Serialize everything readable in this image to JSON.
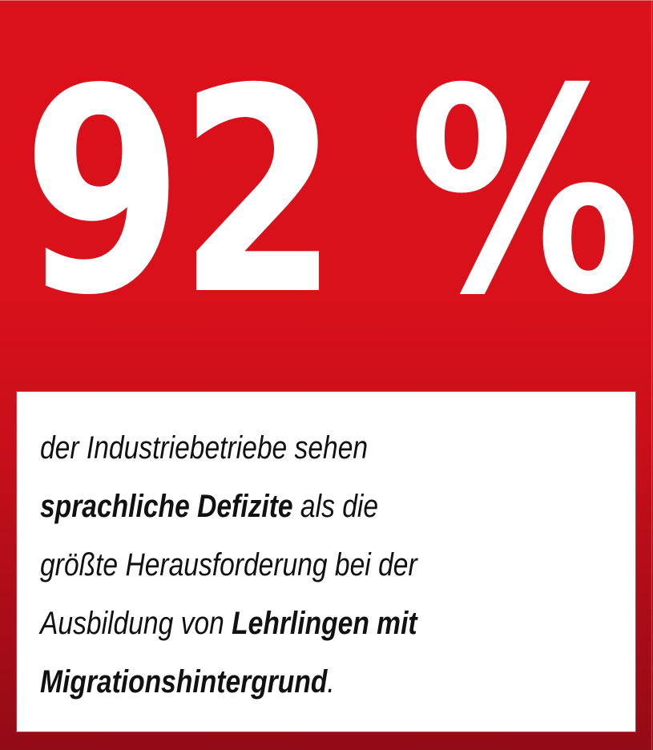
{
  "stat": {
    "value": "92",
    "unit": "%",
    "display": "92 %"
  },
  "description": {
    "lines": [
      [
        {
          "text": "der Industriebetriebe sehen",
          "bold": false
        }
      ],
      [
        {
          "text": "sprachliche Defizite",
          "bold": true
        },
        {
          "text": " als die",
          "bold": false
        }
      ],
      [
        {
          "text": "größte Herausforderung bei der",
          "bold": false
        }
      ],
      [
        {
          "text": "Ausbildung von ",
          "bold": false
        },
        {
          "text": "Lehrlingen mit",
          "bold": true
        }
      ],
      [
        {
          "text": "Migrationshintergrund",
          "bold": true
        },
        {
          "text": ".",
          "bold": false
        }
      ]
    ],
    "full_text": "der Industriebetriebe sehen sprachliche Defizite als die größte Herausforderung bei der Ausbildung von Lehrlingen mit Migrationshintergrund."
  },
  "colors": {
    "background_top": "#db111b",
    "background_bottom": "#930b15",
    "stat_text": "#ffffff",
    "box_background": "#ffffff",
    "body_text": "#111111"
  }
}
